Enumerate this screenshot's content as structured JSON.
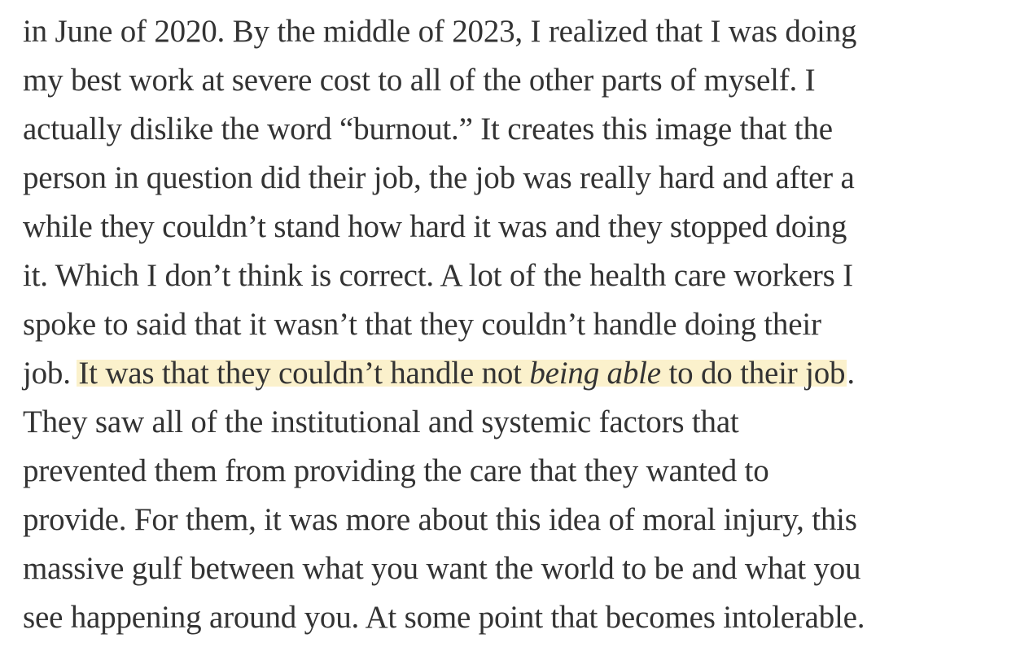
{
  "article": {
    "partial_top_line": "in June of 2020. By the middle of 2023, I realized that I was doing",
    "lines": [
      "my best work at severe cost to all of the other parts of myself. I",
      "actually dislike the word “burnout.” It creates this image that the",
      "person in question did their job, the job was really hard and after a",
      "while they couldn’t stand how hard it was and they stopped doing",
      "it. Which I don’t think is correct. A lot of the health care workers I",
      "spoke to said that it wasn’t that they couldn’t handle doing their"
    ],
    "highlight_line": {
      "prefix": "job. ",
      "highlight_start": "It was that they couldn’t handle not ",
      "highlight_italic": "being able",
      "highlight_end": " to do their job",
      "suffix": "."
    },
    "lines_after": [
      "They saw all of the institutional and systemic factors that",
      "prevented them from providing the care that they wanted to",
      "provide. For them, it was more about this idea of moral injury, this",
      "massive gulf between what you want the world to be and what you",
      "see happening around you. At some point that becomes intolerable."
    ],
    "highlight_color": "#fbf1cc",
    "text_color": "#333333"
  }
}
